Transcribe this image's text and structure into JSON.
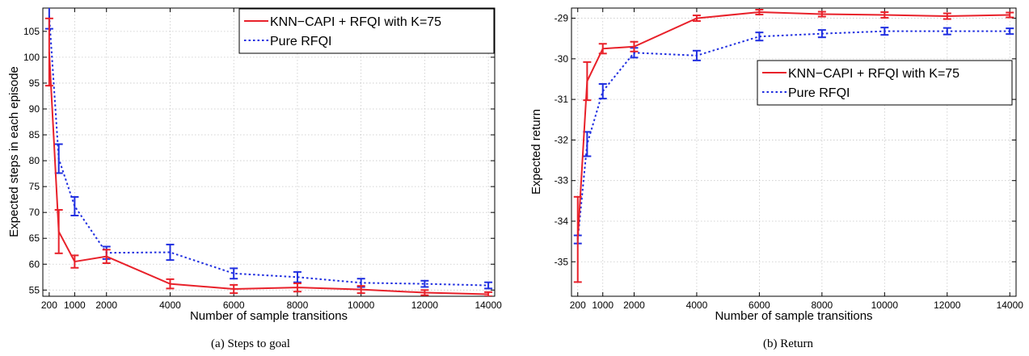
{
  "chart_data": [
    {
      "type": "line",
      "caption": "(a)  Steps to goal",
      "xlabel": "Number of sample transitions",
      "ylabel": "Expected steps in each episode",
      "x": [
        200,
        500,
        1000,
        2000,
        4000,
        6000,
        8000,
        10000,
        12000,
        14000
      ],
      "xticks": [
        200,
        1000,
        2000,
        4000,
        6000,
        8000,
        10000,
        12000,
        14000
      ],
      "yticks": [
        55,
        60,
        65,
        70,
        75,
        80,
        85,
        90,
        95,
        100,
        105
      ],
      "xlim": [
        0,
        14200
      ],
      "ylim": [
        53.8,
        109.5
      ],
      "grid": true,
      "legend_position": "top-right",
      "series": [
        {
          "name": "KNN−CAPI + RFQI with K=75",
          "color": "#e8212a",
          "style": "solid",
          "values": [
            101,
            66.3,
            60.5,
            61.5,
            56.2,
            55.2,
            55.5,
            55.1,
            54.5,
            54.2
          ],
          "errors": [
            6.5,
            4.2,
            1.2,
            1.3,
            0.9,
            0.8,
            0.8,
            0.7,
            0.5,
            0.4
          ]
        },
        {
          "name": "Pure RFQI",
          "color": "#1f2ee0",
          "style": "dotted",
          "values": [
            108,
            80.4,
            71.2,
            62.2,
            62.3,
            58.2,
            57.5,
            56.4,
            56.2,
            55.9
          ],
          "errors": [
            2.5,
            2.8,
            1.8,
            1.2,
            1.5,
            1.0,
            1.0,
            0.8,
            0.6,
            0.6
          ]
        }
      ]
    },
    {
      "type": "line",
      "caption": "(b)  Return",
      "xlabel": "Number of sample transitions",
      "ylabel": "Expected return",
      "x": [
        200,
        500,
        1000,
        2000,
        4000,
        6000,
        8000,
        10000,
        12000,
        14000
      ],
      "xticks": [
        200,
        1000,
        2000,
        4000,
        6000,
        8000,
        10000,
        12000,
        14000
      ],
      "yticks": [
        -35,
        -34,
        -33,
        -32,
        -31,
        -30,
        -29
      ],
      "xlim": [
        0,
        14200
      ],
      "ylim": [
        -35.85,
        -28.75
      ],
      "grid": true,
      "legend_position": "top-right",
      "series": [
        {
          "name": "KNN−CAPI + RFQI with K=75",
          "color": "#e8212a",
          "style": "solid",
          "values": [
            -34.45,
            -30.55,
            -29.75,
            -29.7,
            -29.0,
            -28.85,
            -28.9,
            -28.92,
            -28.95,
            -28.92
          ],
          "errors": [
            1.05,
            0.47,
            0.12,
            0.12,
            0.07,
            0.06,
            0.06,
            0.07,
            0.07,
            0.06
          ]
        },
        {
          "name": "Pure RFQI",
          "color": "#1f2ee0",
          "style": "dotted",
          "values": [
            -34.45,
            -32.1,
            -30.8,
            -29.85,
            -29.92,
            -29.45,
            -29.38,
            -29.32,
            -29.32,
            -29.32
          ],
          "errors": [
            0.1,
            0.3,
            0.18,
            0.12,
            0.12,
            0.1,
            0.09,
            0.09,
            0.08,
            0.07
          ]
        }
      ]
    }
  ]
}
